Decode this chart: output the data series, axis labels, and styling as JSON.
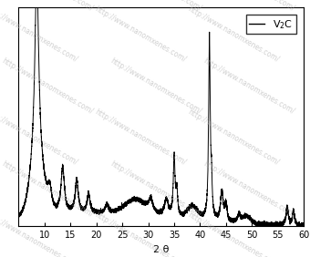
{
  "title": "",
  "xlabel": "2 θ",
  "ylabel": "",
  "xlim": [
    5,
    60
  ],
  "ylim": [
    0,
    1.05
  ],
  "background_color": "#ffffff",
  "line_color": "#000000",
  "tick_fontsize": 7,
  "label_fontsize": 8,
  "xticks": [
    10,
    15,
    20,
    25,
    30,
    35,
    40,
    45,
    50,
    55,
    60
  ],
  "figsize": [
    3.4,
    2.82
  ],
  "dpi": 100
}
